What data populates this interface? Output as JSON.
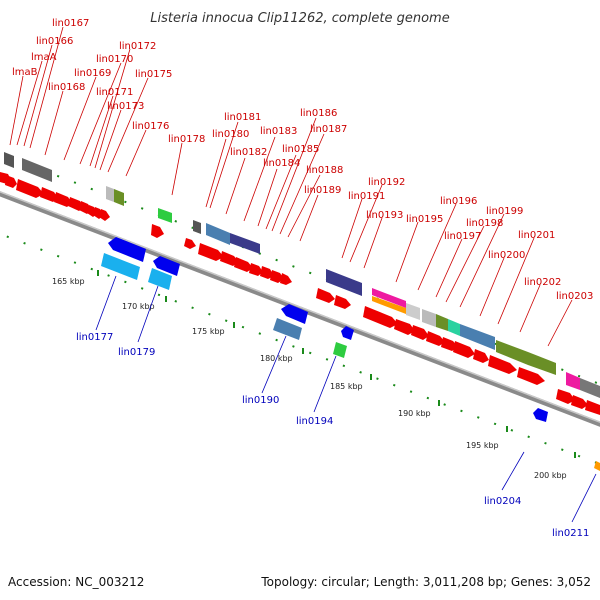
{
  "title": "Listeria innocua Clip11262, complete genome",
  "footer": {
    "accession": "Accession: NC_003212",
    "summary": "Topology: circular; Length: 3,011,208 bp; Genes: 3,052"
  },
  "colors": {
    "forward_gene": "#ee0000",
    "reverse_gene": "#0000ee",
    "forward_label": "#cc0000",
    "reverse_label": "#0000bb",
    "backbone": "#8a8a8a",
    "tick_mark": "#1a8a1a"
  },
  "scale_ticks": [
    "165 kbp",
    "170 kbp",
    "175 kbp",
    "180 kbp",
    "185 kbp",
    "190 kbp",
    "195 kbp",
    "200 kbp"
  ],
  "forward_labels": [
    "lmaB",
    "lmaA",
    "lin0166",
    "lin0167",
    "lin0168",
    "lin0169",
    "lin0170",
    "lin0171",
    "lin0172",
    "lin0173",
    "lin0175",
    "lin0176",
    "lin0178",
    "lin0180",
    "lin0181",
    "lin0182",
    "lin0183",
    "lin0184",
    "lin0185",
    "lin0186",
    "lin0187",
    "lin0188",
    "lin0189",
    "lin0191",
    "lin0192",
    "lin0193",
    "lin0195",
    "lin0196",
    "lin0197",
    "lin0198",
    "lin0199",
    "lin0200",
    "lin0201",
    "lin0202",
    "lin0203"
  ],
  "reverse_labels": [
    "lin0177",
    "lin0179",
    "lin0190",
    "lin0194",
    "lin0204",
    "lin0211"
  ]
}
